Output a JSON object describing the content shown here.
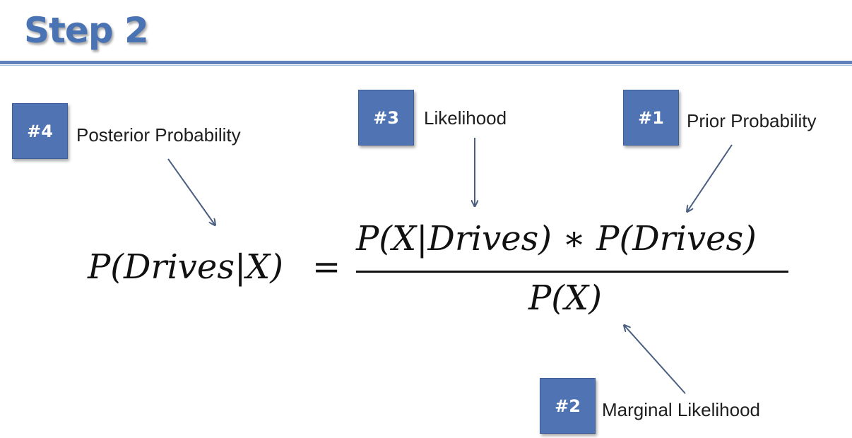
{
  "slide": {
    "title": "Step 2"
  },
  "annotations": [
    {
      "badge": "#4",
      "label": "Posterior Probability"
    },
    {
      "badge": "#3",
      "label": "Likelihood"
    },
    {
      "badge": "#1",
      "label": "Prior Probability"
    },
    {
      "badge": "#2",
      "label": "Marginal Likelihood"
    }
  ],
  "formula": {
    "lhs": "P(Drives|X)",
    "equals": "=",
    "numerator": "P(X|Drives) ∗ P(Drives)",
    "denominator": "P(X)"
  },
  "colors": {
    "accent": "#4f73b3",
    "title": "#4a73b4",
    "arrow": "#4a5f80"
  }
}
